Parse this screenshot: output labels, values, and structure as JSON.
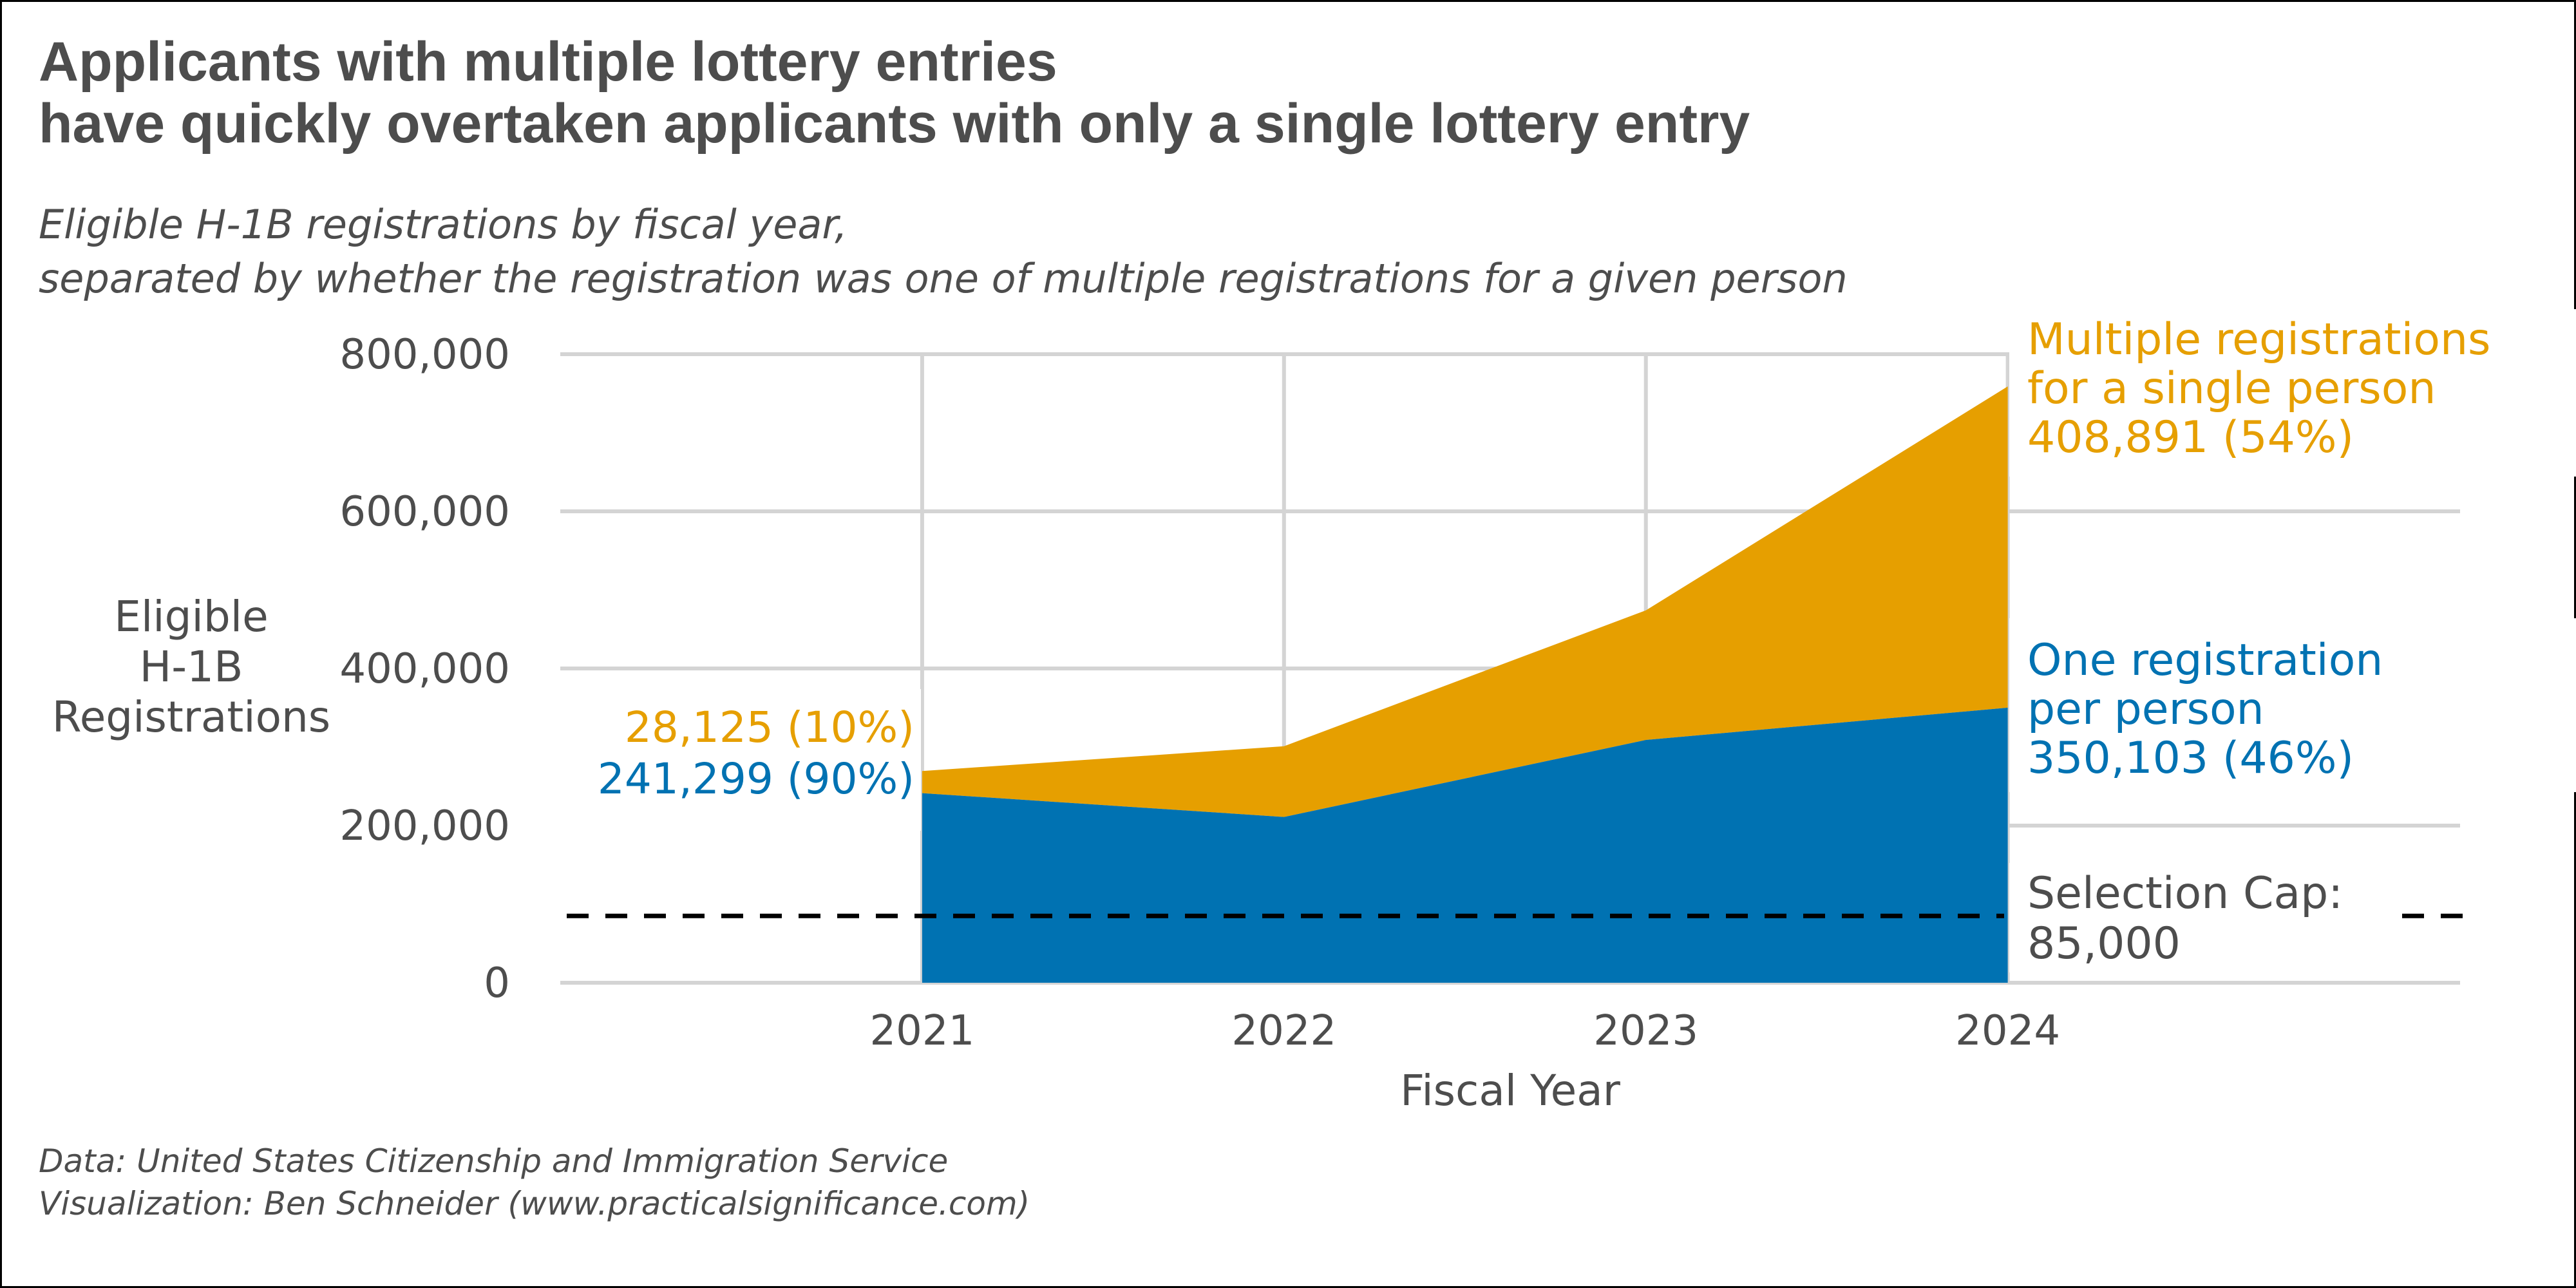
{
  "chart_data": {
    "type": "area",
    "stacked": true,
    "title": [
      "Applicants with multiple lottery entries",
      "have quickly overtaken applicants with only a single lottery entry"
    ],
    "subtitle": [
      "Eligible H-1B registrations by fiscal year,",
      "separated by whether the registration was one of multiple registrations for a given person"
    ],
    "x": [
      2021,
      2022,
      2023,
      2024
    ],
    "xlim": [
      2020,
      2025.25
    ],
    "ylim": [
      0,
      800000
    ],
    "y_ticks": [
      0,
      200000,
      400000,
      600000,
      800000
    ],
    "y_tick_labels": [
      "0",
      "200,000",
      "400,000",
      "600,000",
      "800,000"
    ],
    "x_tick_labels": [
      "2021",
      "2022",
      "2023",
      "2024"
    ],
    "xlabel": "Fiscal Year",
    "ylabel": [
      "Eligible",
      "H-1B",
      "Registrations"
    ],
    "grid": true,
    "series": [
      {
        "name": "One registration per person",
        "label_lines": [
          "One registration",
          "per person",
          "350,103 (46%)"
        ],
        "values": [
          241299,
          211000,
          309000,
          350103
        ],
        "color": "#0072b2"
      },
      {
        "name": "Multiple registrations for a single person",
        "label_lines": [
          "Multiple registrations",
          "for a single person",
          "408,891 (54%)"
        ],
        "values": [
          28125,
          90000,
          165000,
          408891
        ],
        "color": "#e69f00"
      }
    ],
    "start_labels": [
      {
        "text": "28,125 (10%)",
        "color": "#e69f00"
      },
      {
        "text": "241,299 (90%)",
        "color": "#0072b2"
      }
    ],
    "reference_line": {
      "value": 85000,
      "label_lines": [
        "Selection Cap:",
        "85,000"
      ],
      "style": "dashed",
      "color": "#000000"
    },
    "caption": [
      "Data: United States Citizenship and Immigration Service",
      "Visualization: Ben Schneider (www.practicalsignificance.com)"
    ]
  }
}
